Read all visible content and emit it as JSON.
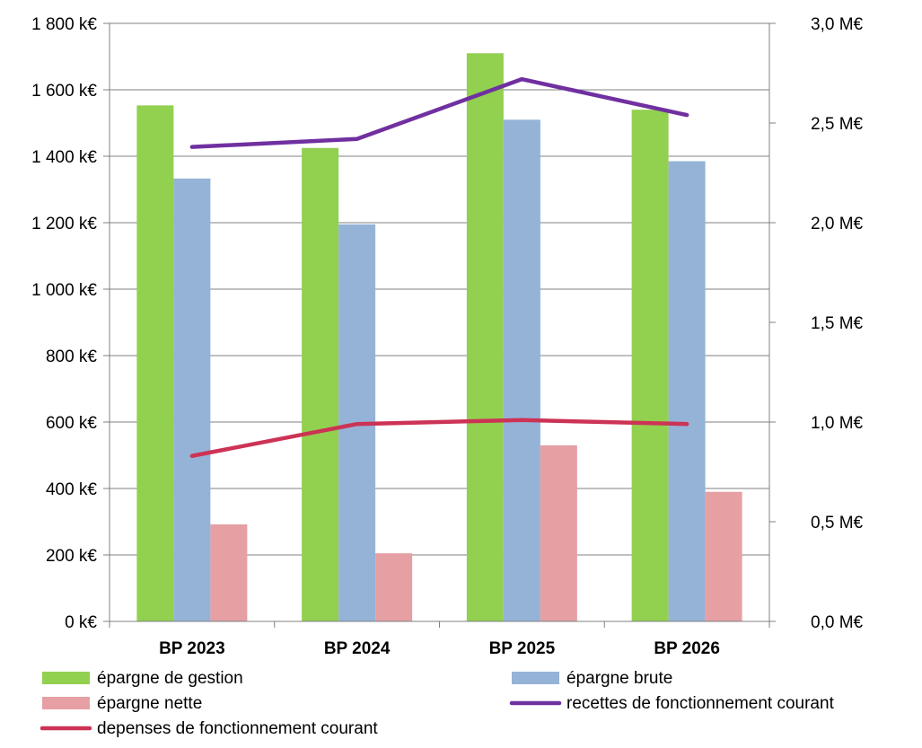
{
  "chart_data": {
    "type": "bar",
    "categories": [
      "BP 2023",
      "BP 2024",
      "BP 2025",
      "BP 2026"
    ],
    "series": [
      {
        "name": "épargne de gestion",
        "kind": "bar",
        "axis": "left",
        "color": "#92d050",
        "values": [
          1553,
          1425,
          1710,
          1540
        ]
      },
      {
        "name": "épargne brute",
        "kind": "bar",
        "axis": "left",
        "color": "#95b3d7",
        "values": [
          1333,
          1195,
          1510,
          1385
        ]
      },
      {
        "name": "épargne nette",
        "kind": "bar",
        "axis": "left",
        "color": "#e6a0a4",
        "values": [
          292,
          205,
          530,
          390
        ]
      },
      {
        "name": "recettes de fonctionnement courant",
        "kind": "line",
        "axis": "right",
        "color": "#7030a0",
        "values": [
          2.38,
          2.42,
          2.72,
          2.54
        ]
      },
      {
        "name": "depenses de fonctionnement courant",
        "kind": "line",
        "axis": "right",
        "color": "#cc3355",
        "values": [
          0.83,
          0.99,
          1.01,
          0.99
        ]
      }
    ],
    "left_axis": {
      "min": 0,
      "max": 1800,
      "step": 200,
      "tick_labels": [
        "0 k€",
        "200 k€",
        "400 k€",
        "600 k€",
        "800 k€",
        "1 000 k€",
        "1 200 k€",
        "1 400 k€",
        "1 600 k€",
        "1 800 k€"
      ]
    },
    "right_axis": {
      "min": 0,
      "max": 3.0,
      "step": 0.5,
      "tick_labels": [
        "0,0 M€",
        "0,5 M€",
        "1,0 M€",
        "1,5 M€",
        "2,0 M€",
        "2,5 M€",
        "3,0 M€"
      ]
    },
    "grid": true,
    "legend_position": "bottom",
    "axis_color": "#808080",
    "grid_color": "#808080"
  }
}
